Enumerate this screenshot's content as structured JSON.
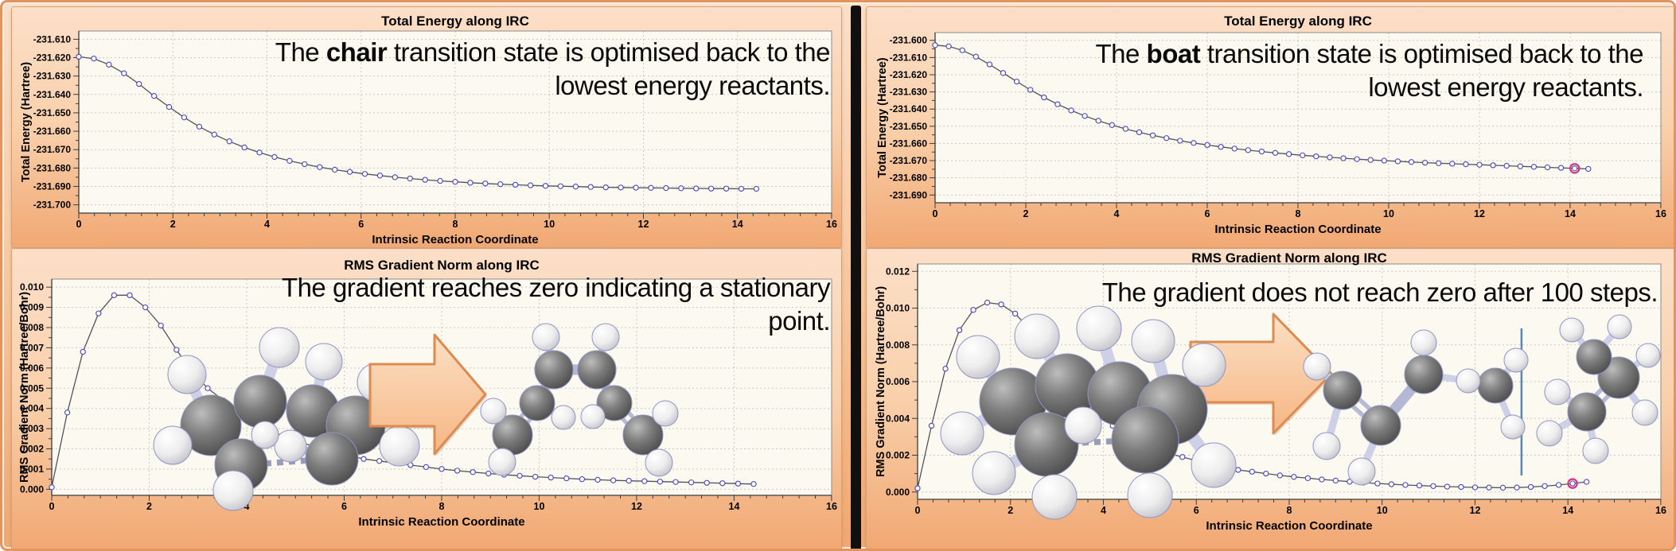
{
  "figure": {
    "divider_color": "#101010",
    "frame_border_color": "#e2945e",
    "panel_background_top": "#fcdfc8",
    "panel_background_bottom": "#f1a873"
  },
  "colors": {
    "plot_bg": "#fcf9f0",
    "grid": "#c6cac4",
    "plot_border": "#8a8a8a",
    "axis": "#3c3c3c",
    "curve_line": "#52525c",
    "marker_stroke": "#4545c0",
    "marker_fill": "#ffffff",
    "highlight": "#d63087",
    "vline": "#5b84b8",
    "arrow_fill_top": "#fbe0c4",
    "arrow_fill_bottom": "#f6b683",
    "arrow_stroke": "#dd8b50",
    "text": "#000000"
  },
  "chart_data": [
    {
      "key": "chair_total_energy",
      "type": "line",
      "title": "Total Energy along IRC",
      "xlabel": "Intrinsic Reaction Coordinate",
      "ylabel": "Total Energy (Hartree)",
      "xlim": [
        0,
        16
      ],
      "xticks": [
        0,
        2,
        4,
        6,
        8,
        10,
        12,
        14,
        16
      ],
      "x_minor": 0.3333,
      "ylim": [
        -231.7045,
        -231.6055
      ],
      "yticks": [
        -231.7,
        -231.69,
        -231.68,
        -231.67,
        -231.66,
        -231.65,
        -231.64,
        -231.63,
        -231.62,
        -231.61
      ],
      "y_minor": 0.005,
      "y_decimals": 3,
      "x_start": 0,
      "x_step": 0.32,
      "values": [
        -231.6195,
        -231.6205,
        -231.6238,
        -231.6285,
        -231.6343,
        -231.6408,
        -231.6468,
        -231.6525,
        -231.6575,
        -231.6618,
        -231.6655,
        -231.6688,
        -231.6716,
        -231.674,
        -231.6761,
        -231.6779,
        -231.6795,
        -231.6809,
        -231.6821,
        -231.6832,
        -231.6841,
        -231.685,
        -231.6857,
        -231.6864,
        -231.687,
        -231.6875,
        -231.688,
        -231.6884,
        -231.6888,
        -231.6891,
        -231.6894,
        -231.6897,
        -231.6899,
        -231.6901,
        -231.6903,
        -231.6905,
        -231.6906,
        -231.6907,
        -231.6908,
        -231.6909,
        -231.691,
        -231.6911,
        -231.6912,
        -231.6912,
        -231.6913,
        -231.6913
      ],
      "highlight": null,
      "vline": null,
      "annotation": {
        "before": "The ",
        "bold": "chair",
        "after": " transition state is optimised back to the",
        "line2": "lowest energy reactants."
      }
    },
    {
      "key": "chair_rms_gradient",
      "type": "line",
      "title": "RMS Gradient Norm along IRC",
      "xlabel": "Intrinsic Reaction Coordinate",
      "ylabel": "RMS Gradient Norm (Hartree/Bohr)",
      "xlim": [
        0,
        16
      ],
      "xticks": [
        0,
        2,
        4,
        6,
        8,
        10,
        12,
        14,
        16
      ],
      "x_minor": 0.3333,
      "ylim": [
        -0.0003,
        0.0104
      ],
      "yticks": [
        0.0,
        0.001,
        0.002,
        0.003,
        0.004,
        0.005,
        0.006,
        0.007,
        0.008,
        0.009,
        0.01
      ],
      "y_minor": 0.0005,
      "y_decimals": 3,
      "x_start": 0,
      "x_step": 0.32,
      "values": [
        0.0001,
        0.0038,
        0.0068,
        0.0087,
        0.0096,
        0.0096,
        0.009,
        0.0081,
        0.0069,
        0.0058,
        0.005,
        0.0044,
        0.0038,
        0.0033,
        0.0029,
        0.0026,
        0.0023,
        0.0021,
        0.0019,
        0.0017,
        0.0015,
        0.0014,
        0.0013,
        0.0012,
        0.0011,
        0.001,
        0.00092,
        0.00085,
        0.00078,
        0.00072,
        0.00067,
        0.00062,
        0.00058,
        0.00054,
        0.0005,
        0.00047,
        0.00044,
        0.00042,
        0.0004,
        0.00038,
        0.00036,
        0.00034,
        0.00032,
        0.0003,
        0.00028,
        0.00026
      ],
      "highlight": null,
      "vline": null,
      "annotation": {
        "before": "",
        "bold": "",
        "after": "The gradient reaches zero indicating a stationary",
        "line2": "point."
      }
    },
    {
      "key": "boat_total_energy",
      "type": "line",
      "title": "Total Energy along IRC",
      "xlabel": "Intrinsic Reaction Coordinate",
      "ylabel": "Total Energy (Hartree)",
      "xlim": [
        0,
        16
      ],
      "xticks": [
        0,
        2,
        4,
        6,
        8,
        10,
        12,
        14,
        16
      ],
      "x_minor": 0.3333,
      "ylim": [
        -231.6945,
        -231.5955
      ],
      "yticks": [
        -231.69,
        -231.68,
        -231.67,
        -231.66,
        -231.65,
        -231.64,
        -231.63,
        -231.62,
        -231.61,
        -231.6
      ],
      "y_minor": 0.005,
      "y_decimals": 3,
      "x_start": 0,
      "x_step": 0.3,
      "values": [
        -231.6028,
        -231.6035,
        -231.6058,
        -231.6095,
        -231.614,
        -231.619,
        -231.624,
        -231.6288,
        -231.6332,
        -231.6372,
        -231.6408,
        -231.644,
        -231.6468,
        -231.6493,
        -231.6515,
        -231.6535,
        -231.6553,
        -231.6569,
        -231.6584,
        -231.6597,
        -231.6609,
        -231.662,
        -231.663,
        -231.6639,
        -231.6647,
        -231.6655,
        -231.6662,
        -231.6669,
        -231.6675,
        -231.6681,
        -231.6686,
        -231.6691,
        -231.6696,
        -231.67,
        -231.6704,
        -231.6708,
        -231.6712,
        -231.6715,
        -231.6718,
        -231.6721,
        -231.6724,
        -231.6727,
        -231.673,
        -231.6733,
        -231.6736,
        -231.6739,
        -231.6742,
        -231.6745,
        -231.6748
      ],
      "highlight": {
        "index": 47,
        "color": "#d63087"
      },
      "vline": null,
      "annotation": {
        "before": "The ",
        "bold": "boat",
        "after": " transition state is optimised back to the",
        "line2": "lowest energy reactants."
      }
    },
    {
      "key": "boat_rms_gradient",
      "type": "line",
      "title": "RMS Gradient Norm along IRC",
      "xlabel": "Intrinsic Reaction Coordinate",
      "ylabel": "RMS Gradient Norm (Hartree/Bohr)",
      "xlim": [
        0,
        16
      ],
      "xticks": [
        0,
        2,
        4,
        6,
        8,
        10,
        12,
        14,
        16
      ],
      "x_minor": 0.3333,
      "ylim": [
        -0.0004,
        0.0124
      ],
      "yticks": [
        0.0,
        0.002,
        0.004,
        0.006,
        0.008,
        0.01,
        0.012
      ],
      "y_minor": 0.001,
      "y_decimals": 3,
      "x_start": 0,
      "x_step": 0.3,
      "values": [
        0.0002,
        0.0036,
        0.0067,
        0.0088,
        0.0099,
        0.0103,
        0.0102,
        0.0097,
        0.0089,
        0.0078,
        0.0067,
        0.0057,
        0.0049,
        0.0042,
        0.0036,
        0.0031,
        0.0027,
        0.0024,
        0.0021,
        0.0019,
        0.0017,
        0.0015,
        0.0013,
        0.0012,
        0.0011,
        0.001,
        0.0009,
        0.00082,
        0.00075,
        0.00068,
        0.00062,
        0.00056,
        0.00051,
        0.00046,
        0.00042,
        0.00038,
        0.00035,
        0.00032,
        0.00029,
        0.00027,
        0.00025,
        0.00024,
        0.00023,
        0.00024,
        0.00027,
        0.00032,
        0.00038,
        0.00046,
        0.00055
      ],
      "highlight": {
        "index": 47,
        "color": "#d63087"
      },
      "vline": {
        "x": 13.0,
        "y_from": 0.0009,
        "y_to": 0.0089,
        "color": "#5b84b8"
      },
      "annotation": {
        "before": "",
        "bold": "",
        "after": "The gradient does not reach zero after 100 steps.",
        "line2": ""
      }
    }
  ],
  "decoration_names": {
    "panel_chair_gradient": [
      "molecule-chair-transition-state",
      "right-block-arrow",
      "molecule-hexadiene-product"
    ],
    "panel_boat_gradient": [
      "right-block-arrow",
      "molecule-boat-transition-state",
      "molecule-product-fragment-left",
      "molecule-product-fragment-right",
      "step-limit-line"
    ]
  }
}
